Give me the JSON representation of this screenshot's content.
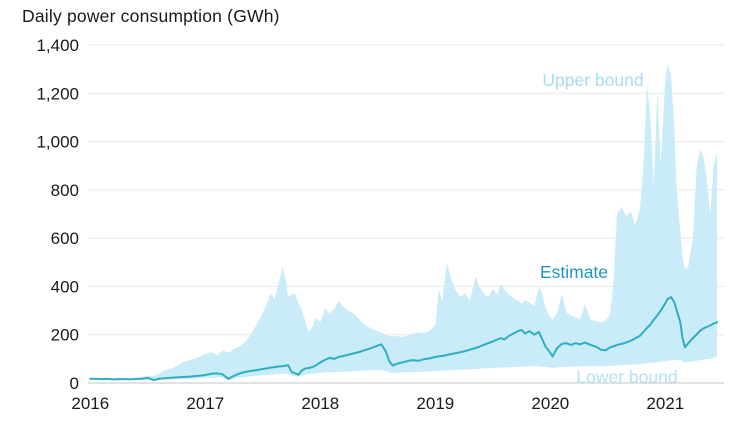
{
  "page": {
    "title": "Daily power consumption (GWh)"
  },
  "chart_data": {
    "type": "area",
    "title": "Daily power consumption (GWh)",
    "xlabel": "",
    "ylabel": "Daily power consumption (GWh)",
    "grid": true,
    "legend_position": "inline-annotations",
    "x_range": [
      2015.98,
      2021.51
    ],
    "y_range": [
      0,
      1400
    ],
    "x_ticks": [
      {
        "value": 2016,
        "label": "2016"
      },
      {
        "value": 2017,
        "label": "2017"
      },
      {
        "value": 2018,
        "label": "2018"
      },
      {
        "value": 2019,
        "label": "2019"
      },
      {
        "value": 2020,
        "label": "2020"
      },
      {
        "value": 2021,
        "label": "2021"
      }
    ],
    "y_ticks": [
      {
        "value": 0,
        "label": "0"
      },
      {
        "value": 200,
        "label": "200"
      },
      {
        "value": 400,
        "label": "400"
      },
      {
        "value": 600,
        "label": "600"
      },
      {
        "value": 800,
        "label": "800"
      },
      {
        "value": 1000,
        "label": "1,000"
      },
      {
        "value": 1200,
        "label": "1,200"
      },
      {
        "value": 1400,
        "label": "1,400"
      }
    ],
    "series_meta": [
      {
        "name": "Upper bound",
        "role": "band-upper-edge",
        "color": "#c9ecf8"
      },
      {
        "name": "Estimate",
        "role": "line",
        "color": "#2fadc4"
      },
      {
        "name": "Lower bound",
        "role": "band-lower-edge",
        "color": "#c9ecf8"
      }
    ],
    "points_format": [
      "year_decimal",
      "lower_bound_GWh",
      "estimate_GWh",
      "upper_bound_GWh"
    ],
    "points": [
      [
        2016.0,
        14,
        18,
        22
      ],
      [
        2016.05,
        13,
        17,
        21
      ],
      [
        2016.1,
        12,
        16,
        20
      ],
      [
        2016.15,
        13,
        17,
        22
      ],
      [
        2016.2,
        12,
        15,
        19
      ],
      [
        2016.25,
        12,
        16,
        21
      ],
      [
        2016.3,
        13,
        16,
        20
      ],
      [
        2016.35,
        12,
        15,
        19
      ],
      [
        2016.4,
        13,
        17,
        22
      ],
      [
        2016.45,
        14,
        18,
        25
      ],
      [
        2016.5,
        15,
        21,
        30
      ],
      [
        2016.55,
        9,
        12,
        28
      ],
      [
        2016.6,
        13,
        18,
        40
      ],
      [
        2016.65,
        14,
        20,
        52
      ],
      [
        2016.7,
        15,
        22,
        60
      ],
      [
        2016.75,
        16,
        23,
        70
      ],
      [
        2016.8,
        17,
        25,
        85
      ],
      [
        2016.85,
        17,
        26,
        92
      ],
      [
        2016.9,
        18,
        28,
        100
      ],
      [
        2016.95,
        19,
        30,
        108
      ],
      [
        2017.0,
        20,
        33,
        120
      ],
      [
        2017.05,
        22,
        38,
        128
      ],
      [
        2017.1,
        23,
        40,
        115
      ],
      [
        2017.15,
        22,
        36,
        135
      ],
      [
        2017.2,
        12,
        17,
        125
      ],
      [
        2017.25,
        18,
        30,
        142
      ],
      [
        2017.3,
        22,
        40,
        152
      ],
      [
        2017.35,
        25,
        46,
        172
      ],
      [
        2017.4,
        28,
        50,
        205
      ],
      [
        2017.45,
        30,
        54,
        245
      ],
      [
        2017.5,
        32,
        58,
        292
      ],
      [
        2017.54,
        33,
        61,
        335
      ],
      [
        2017.57,
        35,
        64,
        372
      ],
      [
        2017.6,
        36,
        66,
        348
      ],
      [
        2017.63,
        37,
        68,
        396
      ],
      [
        2017.67,
        38,
        70,
        480
      ],
      [
        2017.7,
        38,
        72,
        430
      ],
      [
        2017.72,
        39,
        74,
        358
      ],
      [
        2017.75,
        30,
        46,
        366
      ],
      [
        2017.78,
        28,
        40,
        372
      ],
      [
        2017.81,
        26,
        35,
        330
      ],
      [
        2017.84,
        30,
        52,
        300
      ],
      [
        2017.87,
        34,
        60,
        256
      ],
      [
        2017.9,
        36,
        62,
        210
      ],
      [
        2017.93,
        38,
        66,
        232
      ],
      [
        2017.96,
        40,
        72,
        270
      ],
      [
        2018.0,
        42,
        85,
        252
      ],
      [
        2018.04,
        44,
        96,
        308
      ],
      [
        2018.08,
        45,
        104,
        288
      ],
      [
        2018.12,
        44,
        100,
        306
      ],
      [
        2018.16,
        46,
        108,
        340
      ],
      [
        2018.2,
        47,
        112,
        316
      ],
      [
        2018.25,
        48,
        118,
        298
      ],
      [
        2018.3,
        48,
        124,
        286
      ],
      [
        2018.35,
        50,
        130,
        258
      ],
      [
        2018.4,
        52,
        138,
        236
      ],
      [
        2018.45,
        53,
        146,
        224
      ],
      [
        2018.5,
        54,
        155,
        214
      ],
      [
        2018.53,
        54,
        160,
        208
      ],
      [
        2018.57,
        50,
        130,
        200
      ],
      [
        2018.6,
        45,
        90,
        196
      ],
      [
        2018.63,
        42,
        72,
        192
      ],
      [
        2018.67,
        43,
        80,
        196
      ],
      [
        2018.71,
        44,
        85,
        190
      ],
      [
        2018.75,
        45,
        90,
        196
      ],
      [
        2018.8,
        46,
        95,
        202
      ],
      [
        2018.85,
        46,
        92,
        210
      ],
      [
        2018.9,
        47,
        98,
        206
      ],
      [
        2018.95,
        48,
        102,
        216
      ],
      [
        2019.0,
        50,
        108,
        240
      ],
      [
        2019.03,
        50,
        110,
        390
      ],
      [
        2019.06,
        51,
        112,
        335
      ],
      [
        2019.1,
        52,
        116,
        497
      ],
      [
        2019.14,
        53,
        120,
        430
      ],
      [
        2019.18,
        54,
        124,
        380
      ],
      [
        2019.22,
        55,
        128,
        358
      ],
      [
        2019.26,
        56,
        132,
        372
      ],
      [
        2019.3,
        57,
        138,
        340
      ],
      [
        2019.35,
        58,
        145,
        442
      ],
      [
        2019.38,
        59,
        150,
        402
      ],
      [
        2019.42,
        60,
        158,
        372
      ],
      [
        2019.46,
        61,
        165,
        354
      ],
      [
        2019.5,
        62,
        172,
        390
      ],
      [
        2019.54,
        63,
        180,
        368
      ],
      [
        2019.57,
        64,
        186,
        412
      ],
      [
        2019.6,
        64,
        180,
        388
      ],
      [
        2019.64,
        65,
        195,
        368
      ],
      [
        2019.68,
        66,
        205,
        352
      ],
      [
        2019.72,
        67,
        215,
        340
      ],
      [
        2019.75,
        68,
        220,
        330
      ],
      [
        2019.78,
        68,
        205,
        344
      ],
      [
        2019.82,
        69,
        215,
        332
      ],
      [
        2019.86,
        70,
        200,
        320
      ],
      [
        2019.9,
        70,
        212,
        400
      ],
      [
        2019.93,
        68,
        180,
        368
      ],
      [
        2019.96,
        66,
        150,
        310
      ],
      [
        2020.0,
        64,
        125,
        272
      ],
      [
        2020.02,
        62,
        110,
        262
      ],
      [
        2020.06,
        64,
        145,
        290
      ],
      [
        2020.1,
        66,
        162,
        370
      ],
      [
        2020.14,
        67,
        165,
        292
      ],
      [
        2020.18,
        68,
        158,
        280
      ],
      [
        2020.22,
        68,
        165,
        272
      ],
      [
        2020.26,
        69,
        160,
        264
      ],
      [
        2020.3,
        70,
        168,
        330
      ],
      [
        2020.35,
        70,
        158,
        262
      ],
      [
        2020.4,
        70,
        150,
        255
      ],
      [
        2020.44,
        69,
        138,
        250
      ],
      [
        2020.48,
        70,
        135,
        258
      ],
      [
        2020.52,
        71,
        148,
        282
      ],
      [
        2020.55,
        72,
        152,
        425
      ],
      [
        2020.58,
        73,
        158,
        700
      ],
      [
        2020.62,
        74,
        162,
        728
      ],
      [
        2020.66,
        75,
        168,
        692
      ],
      [
        2020.7,
        76,
        175,
        712
      ],
      [
        2020.74,
        77,
        185,
        652
      ],
      [
        2020.78,
        78,
        196,
        722
      ],
      [
        2020.81,
        80,
        212,
        905
      ],
      [
        2020.84,
        82,
        228,
        1240
      ],
      [
        2020.87,
        84,
        242,
        1095
      ],
      [
        2020.9,
        85,
        262,
        820
      ],
      [
        2020.93,
        86,
        280,
        1210
      ],
      [
        2020.96,
        88,
        300,
        905
      ],
      [
        2021.0,
        90,
        330,
        1255
      ],
      [
        2021.02,
        92,
        348,
        1320
      ],
      [
        2021.05,
        94,
        356,
        1275
      ],
      [
        2021.08,
        95,
        332,
        1050
      ],
      [
        2021.1,
        96,
        300,
        800
      ],
      [
        2021.13,
        95,
        252,
        620
      ],
      [
        2021.15,
        90,
        185,
        522
      ],
      [
        2021.17,
        85,
        148,
        468
      ],
      [
        2021.2,
        88,
        165,
        482
      ],
      [
        2021.24,
        90,
        186,
        600
      ],
      [
        2021.27,
        92,
        200,
        880
      ],
      [
        2021.3,
        95,
        215,
        968
      ],
      [
        2021.33,
        97,
        226,
        938
      ],
      [
        2021.36,
        99,
        232,
        848
      ],
      [
        2021.39,
        100,
        238,
        695
      ],
      [
        2021.42,
        105,
        246,
        900
      ],
      [
        2021.45,
        110,
        252,
        958
      ]
    ],
    "annotations": [
      {
        "text": "Upper bound",
        "x": 593,
        "y": 80,
        "color": "#a6ddf0"
      },
      {
        "text": "Estimate",
        "x": 574,
        "y": 272,
        "color": "#2196bc"
      },
      {
        "text": "Lower bound",
        "x": 627,
        "y": 377,
        "color": "#b3e2f2"
      }
    ],
    "colors": {
      "band_fill": "#c9ecf8",
      "estimate_line": "#2fadc4",
      "gridline": "#e8e8e8",
      "axis_line": "#c6c6c6",
      "text": "#1a1a1a"
    }
  }
}
